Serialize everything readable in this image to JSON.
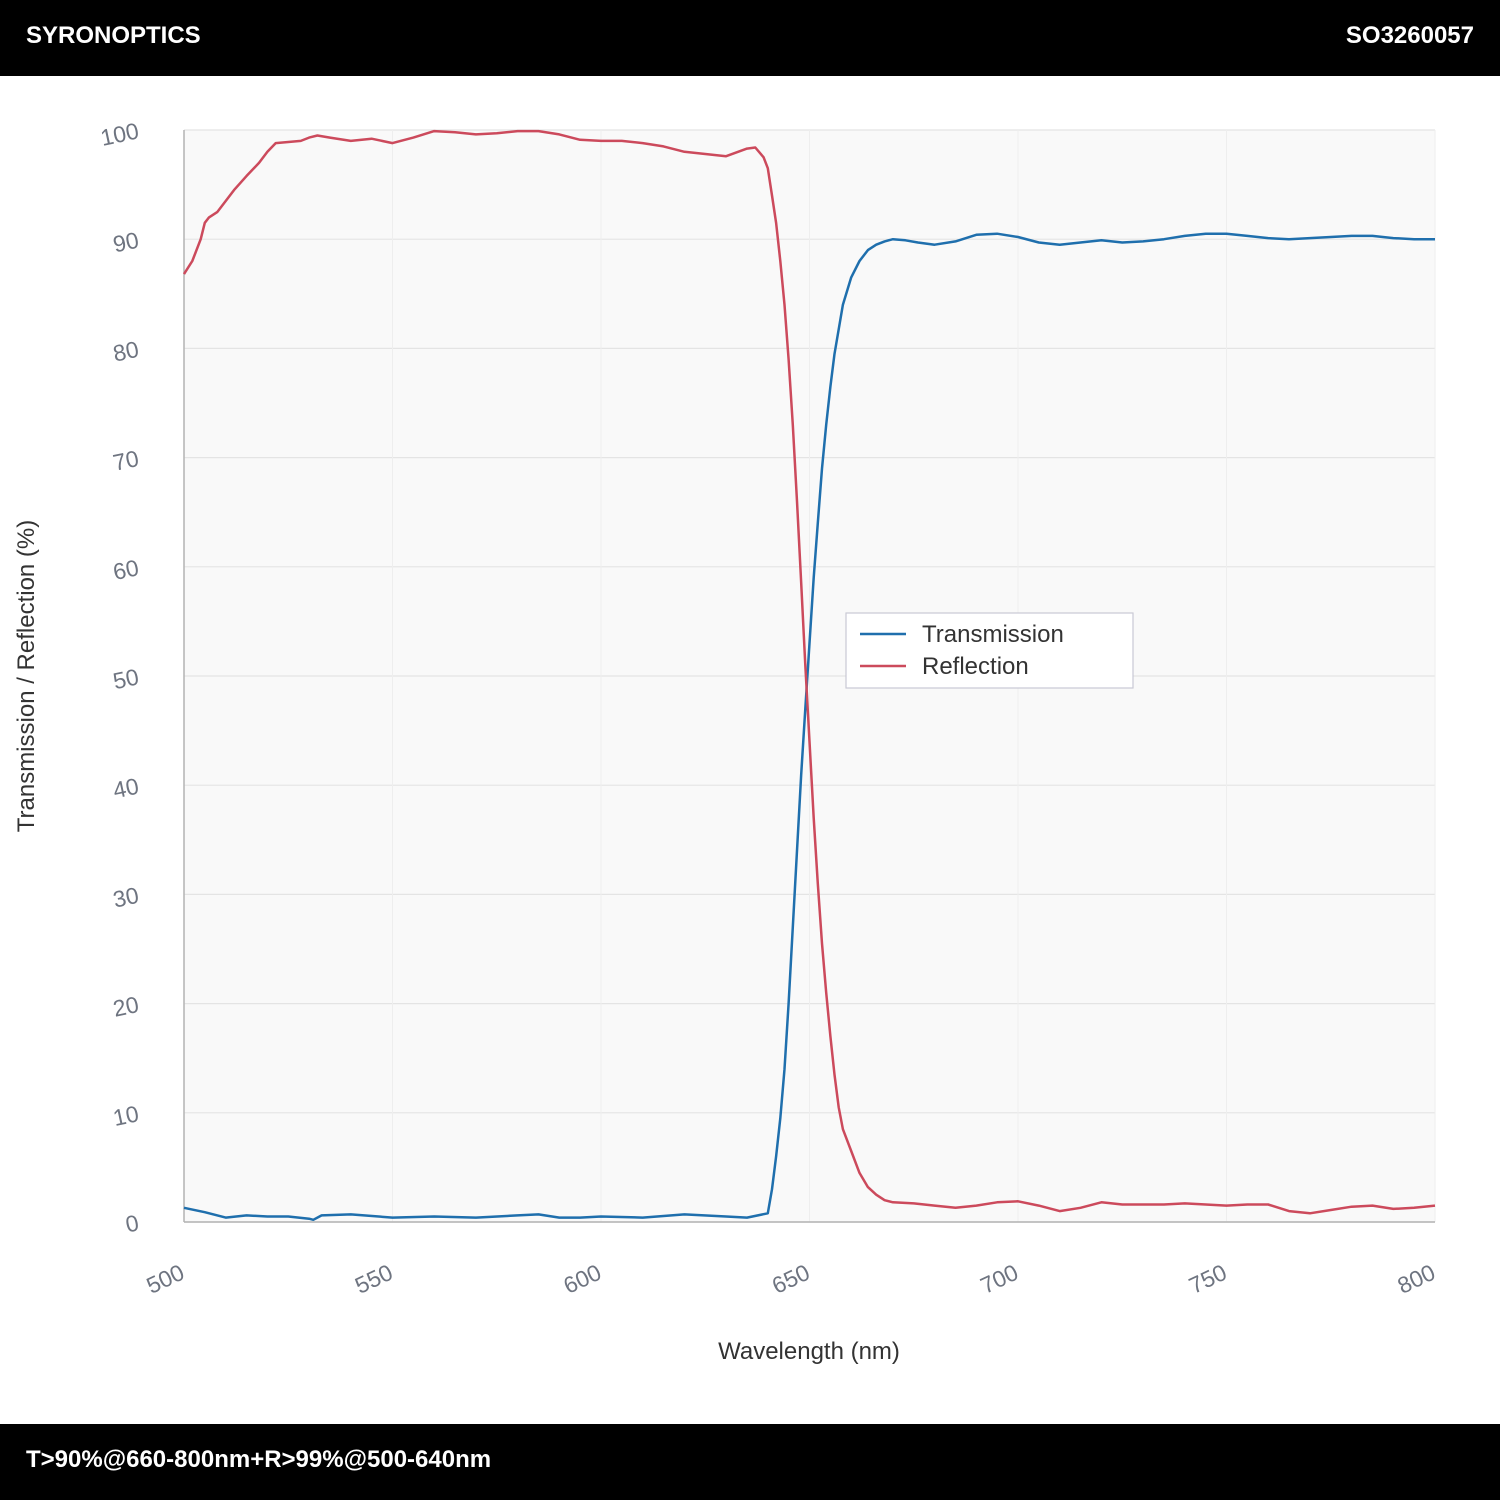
{
  "header": {
    "brand": "SYRONOPTICS",
    "part_number": "SO3260057"
  },
  "footer": {
    "spec": "T>90%@660-800nm+R>99%@500-640nm"
  },
  "chart_data": {
    "type": "line",
    "title": "",
    "xlabel": "Wavelength (nm)",
    "ylabel": "Transmission / Reflection (%)",
    "xlim": [
      500,
      800
    ],
    "ylim": [
      0,
      100
    ],
    "xticks": [
      500,
      550,
      600,
      650,
      700,
      750,
      800
    ],
    "yticks": [
      0,
      10,
      20,
      30,
      40,
      50,
      60,
      70,
      80,
      90,
      100
    ],
    "grid": true,
    "legend": "center-right",
    "series": [
      {
        "name": "Transmission",
        "color": "#1f6fad",
        "x": [
          500,
          505,
          510,
          515,
          520,
          525,
          530,
          531,
          533,
          540,
          550,
          560,
          570,
          580,
          585,
          590,
          595,
          600,
          610,
          620,
          630,
          635,
          640,
          641,
          642,
          643,
          644,
          645,
          646,
          647,
          648,
          649,
          650,
          651,
          652,
          653,
          654,
          655,
          656,
          658,
          660,
          662,
          664,
          666,
          668,
          670,
          673,
          676,
          680,
          685,
          690,
          695,
          700,
          705,
          710,
          715,
          720,
          725,
          730,
          735,
          740,
          745,
          750,
          755,
          760,
          765,
          770,
          775,
          780,
          785,
          790,
          795,
          800
        ],
        "values": [
          1.3,
          0.9,
          0.4,
          0.6,
          0.5,
          0.5,
          0.3,
          0.2,
          0.6,
          0.7,
          0.4,
          0.5,
          0.4,
          0.6,
          0.7,
          0.4,
          0.4,
          0.5,
          0.4,
          0.7,
          0.5,
          0.4,
          0.8,
          3.0,
          6.0,
          9.5,
          14.0,
          20.0,
          27.0,
          34.0,
          41.0,
          47.0,
          53.0,
          59.0,
          64.0,
          69.0,
          73.0,
          76.5,
          79.5,
          84.0,
          86.5,
          88.0,
          89.0,
          89.5,
          89.8,
          90.0,
          89.9,
          89.7,
          89.5,
          89.8,
          90.4,
          90.5,
          90.2,
          89.7,
          89.5,
          89.7,
          89.9,
          89.7,
          89.8,
          90.0,
          90.3,
          90.5,
          90.5,
          90.3,
          90.1,
          90.0,
          90.1,
          90.2,
          90.3,
          90.3,
          90.1,
          90.0,
          90.0
        ]
      },
      {
        "name": "Reflection",
        "color": "#cc4a5c",
        "x": [
          500,
          502,
          504,
          505,
          506,
          508,
          510,
          512,
          515,
          518,
          520,
          522,
          525,
          528,
          530,
          532,
          535,
          540,
          545,
          550,
          555,
          560,
          565,
          570,
          575,
          580,
          585,
          590,
          595,
          600,
          605,
          610,
          615,
          620,
          625,
          630,
          635,
          637,
          639,
          640,
          641,
          642,
          643,
          644,
          645,
          646,
          647,
          648,
          649,
          650,
          651,
          652,
          653,
          654,
          655,
          656,
          657,
          658,
          660,
          662,
          664,
          666,
          668,
          670,
          675,
          680,
          685,
          690,
          695,
          700,
          705,
          710,
          715,
          720,
          725,
          730,
          735,
          740,
          745,
          750,
          755,
          760,
          765,
          770,
          775,
          780,
          785,
          790,
          795,
          800
        ],
        "values": [
          86.8,
          88.0,
          90.0,
          91.5,
          92.0,
          92.5,
          93.5,
          94.5,
          95.8,
          97.0,
          98.0,
          98.8,
          98.9,
          99.0,
          99.3,
          99.5,
          99.3,
          99.0,
          99.2,
          98.8,
          99.3,
          99.9,
          99.8,
          99.6,
          99.7,
          99.9,
          99.9,
          99.6,
          99.1,
          99.0,
          99.0,
          98.8,
          98.5,
          98.0,
          97.8,
          97.6,
          98.3,
          98.4,
          97.5,
          96.5,
          94.0,
          91.5,
          88.0,
          84.0,
          79.0,
          73.0,
          66.0,
          58.5,
          51.0,
          44.0,
          37.0,
          31.0,
          25.5,
          21.0,
          17.0,
          13.5,
          10.5,
          8.5,
          6.5,
          4.5,
          3.2,
          2.5,
          2.0,
          1.8,
          1.7,
          1.5,
          1.3,
          1.5,
          1.8,
          1.9,
          1.5,
          1.0,
          1.3,
          1.8,
          1.6,
          1.6,
          1.6,
          1.7,
          1.6,
          1.5,
          1.6,
          1.6,
          1.0,
          0.8,
          1.1,
          1.4,
          1.5,
          1.2,
          1.3,
          1.5
        ]
      }
    ]
  }
}
